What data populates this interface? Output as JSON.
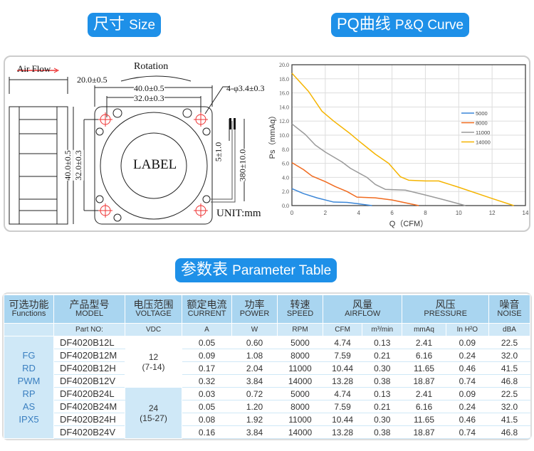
{
  "headings": {
    "size_cn": "尺寸",
    "size_en": "Size",
    "pq_cn": "PQ曲线",
    "pq_en": "P&Q Curve",
    "table_cn": "参数表",
    "table_en": "Parameter Table"
  },
  "drawing": {
    "air_flow": "Air Flow",
    "rotation": "Rotation",
    "depth": "20.0±0.5",
    "width_outer": "40.0±0.5",
    "width_hole": "32.0±0.3",
    "height_outer": "40.0±0.5",
    "height_hole": "32.0±0.3",
    "holes": "4-φ3.4±0.3",
    "wire_strip": "5±1.0",
    "wire_len": "380±10.0",
    "label": "LABEL",
    "unit": "UNIT:mm"
  },
  "chart_data": {
    "type": "line",
    "xlabel": "Q（CFM）",
    "ylabel": "Ps（mmAq）",
    "xlim": [
      0,
      14
    ],
    "ylim": [
      0,
      20
    ],
    "grid": true,
    "legend": "right",
    "x_ticks": [
      "0",
      "2",
      "4",
      "6",
      "8",
      "10",
      "12",
      "14"
    ],
    "y_ticks": [
      "0.0",
      "2.0",
      "4.0",
      "6.0",
      "8.0",
      "10.0",
      "12.0",
      "14.0",
      "16.0",
      "18.0",
      "20.0"
    ],
    "series": [
      {
        "name": "5000",
        "color": "#3a86d8",
        "points": [
          [
            0,
            2.4
          ],
          [
            0.7,
            1.7
          ],
          [
            1.5,
            1.1
          ],
          [
            2.5,
            0.5
          ],
          [
            3.3,
            0.45
          ],
          [
            4,
            0.25
          ],
          [
            4.8,
            0
          ]
        ]
      },
      {
        "name": "8000",
        "color": "#f06a1e",
        "points": [
          [
            0,
            6.1
          ],
          [
            0.7,
            5.1
          ],
          [
            1.2,
            4.2
          ],
          [
            2,
            3.4
          ],
          [
            2.6,
            2.7
          ],
          [
            3.3,
            2.0
          ],
          [
            3.9,
            1.2
          ],
          [
            5,
            1.1
          ],
          [
            6,
            0.8
          ],
          [
            7.6,
            0
          ]
        ]
      },
      {
        "name": "11000",
        "color": "#9a9a9a",
        "points": [
          [
            0,
            11.6
          ],
          [
            0.8,
            10.1
          ],
          [
            1.4,
            8.6
          ],
          [
            2,
            7.6
          ],
          [
            3,
            6.2
          ],
          [
            3.5,
            5.3
          ],
          [
            4.5,
            4.0
          ],
          [
            5,
            3.0
          ],
          [
            5.6,
            2.3
          ],
          [
            6.8,
            2.2
          ],
          [
            8,
            1.5
          ],
          [
            9,
            0.9
          ],
          [
            10.4,
            0
          ]
        ]
      },
      {
        "name": "14000",
        "color": "#f5b400",
        "points": [
          [
            0,
            18.8
          ],
          [
            1,
            16.2
          ],
          [
            1.8,
            13.4
          ],
          [
            2.5,
            12
          ],
          [
            3.5,
            10.2
          ],
          [
            4,
            9.2
          ],
          [
            5,
            7.3
          ],
          [
            5.8,
            6.0
          ],
          [
            6.5,
            4.1
          ],
          [
            7,
            3.6
          ],
          [
            8,
            3.5
          ],
          [
            8.8,
            3.5
          ],
          [
            10,
            2.6
          ],
          [
            12,
            1.0
          ],
          [
            13.3,
            0
          ]
        ]
      }
    ]
  },
  "table": {
    "headers": [
      {
        "cn": "可选功能",
        "en": "Functions"
      },
      {
        "cn": "产品型号",
        "en": "MODEL"
      },
      {
        "cn": "电压范围",
        "en": "VOLTAGE"
      },
      {
        "cn": "额定电流",
        "en": "CURRENT"
      },
      {
        "cn": "功率",
        "en": "POWER"
      },
      {
        "cn": "转速",
        "en": "SPEED"
      },
      {
        "cn": "风量",
        "en": "AIRFLOW"
      },
      {
        "cn": "风压",
        "en": "PRESSURE"
      },
      {
        "cn": "噪音",
        "en": "NOISE"
      }
    ],
    "units": [
      "Part NO:",
      "VDC",
      "A",
      "W",
      "RPM",
      "CFM",
      "m³/min",
      "mmAq",
      "In H²O",
      "dBA"
    ],
    "functions": [
      "FG",
      "RD",
      "PWM",
      "RP",
      "AS",
      "IPX5"
    ],
    "voltage_groups": [
      {
        "v": "12",
        "range": "(7-14)"
      },
      {
        "v": "24",
        "range": "(15-27)"
      }
    ],
    "rows": [
      [
        "DF4020B12L",
        "0.05",
        "0.60",
        "5000",
        "4.74",
        "0.13",
        "2.41",
        "0.09",
        "22.5"
      ],
      [
        "DF4020B12M",
        "0.09",
        "1.08",
        "8000",
        "7.59",
        "0.21",
        "6.16",
        "0.24",
        "32.0"
      ],
      [
        "DF4020B12H",
        "0.17",
        "2.04",
        "11000",
        "10.44",
        "0.30",
        "11.65",
        "0.46",
        "41.5"
      ],
      [
        "DF4020B12V",
        "0.32",
        "3.84",
        "14000",
        "13.28",
        "0.38",
        "18.87",
        "0.74",
        "46.8"
      ],
      [
        "DF4020B24L",
        "0.03",
        "0.72",
        "5000",
        "4.74",
        "0.13",
        "2.41",
        "0.09",
        "22.5"
      ],
      [
        "DF4020B24M",
        "0.05",
        "1.20",
        "8000",
        "7.59",
        "0.21",
        "6.16",
        "0.24",
        "32.0"
      ],
      [
        "DF4020B24H",
        "0.08",
        "1.92",
        "11000",
        "10.44",
        "0.30",
        "11.65",
        "0.46",
        "41.5"
      ],
      [
        "DF4020B24V",
        "0.16",
        "3.84",
        "14000",
        "13.28",
        "0.38",
        "18.87",
        "0.74",
        "46.8"
      ]
    ]
  }
}
